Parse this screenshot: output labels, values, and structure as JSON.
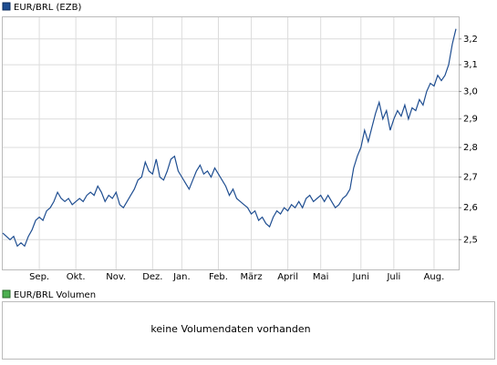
{
  "chart_data": {
    "type": "line",
    "log_scale": true,
    "grid": true,
    "series": [
      {
        "name": "EUR/BRL (EZB)",
        "color": "#1f4e91",
        "values": [
          2.52,
          2.51,
          2.5,
          2.51,
          2.48,
          2.49,
          2.48,
          2.51,
          2.53,
          2.56,
          2.57,
          2.56,
          2.59,
          2.6,
          2.62,
          2.65,
          2.63,
          2.62,
          2.63,
          2.61,
          2.62,
          2.63,
          2.62,
          2.64,
          2.65,
          2.64,
          2.67,
          2.65,
          2.62,
          2.64,
          2.63,
          2.65,
          2.61,
          2.6,
          2.62,
          2.64,
          2.66,
          2.69,
          2.7,
          2.75,
          2.72,
          2.71,
          2.76,
          2.7,
          2.69,
          2.72,
          2.76,
          2.77,
          2.72,
          2.7,
          2.68,
          2.66,
          2.69,
          2.72,
          2.74,
          2.71,
          2.72,
          2.7,
          2.73,
          2.71,
          2.69,
          2.67,
          2.64,
          2.66,
          2.63,
          2.62,
          2.61,
          2.6,
          2.58,
          2.59,
          2.56,
          2.57,
          2.55,
          2.54,
          2.57,
          2.59,
          2.58,
          2.6,
          2.59,
          2.61,
          2.6,
          2.62,
          2.6,
          2.63,
          2.64,
          2.62,
          2.63,
          2.64,
          2.62,
          2.64,
          2.62,
          2.6,
          2.61,
          2.63,
          2.64,
          2.66,
          2.73,
          2.77,
          2.8,
          2.86,
          2.82,
          2.87,
          2.92,
          2.96,
          2.9,
          2.93,
          2.86,
          2.9,
          2.93,
          2.91,
          2.95,
          2.9,
          2.94,
          2.93,
          2.97,
          2.95,
          3.0,
          3.03,
          3.02,
          3.06,
          3.04,
          3.06,
          3.1,
          3.18,
          3.24
        ]
      }
    ],
    "categories": [
      null,
      null,
      null,
      null,
      null,
      null,
      null,
      null,
      null,
      null,
      "Sep.",
      null,
      null,
      null,
      null,
      null,
      null,
      null,
      null,
      null,
      "Okt.",
      null,
      null,
      null,
      null,
      null,
      null,
      null,
      null,
      null,
      null,
      "Nov.",
      null,
      null,
      null,
      null,
      null,
      null,
      null,
      null,
      null,
      "Dez.",
      null,
      null,
      null,
      null,
      null,
      null,
      null,
      "Jan.",
      null,
      null,
      null,
      null,
      null,
      null,
      null,
      null,
      null,
      "Feb.",
      null,
      null,
      null,
      null,
      null,
      null,
      null,
      null,
      "März",
      null,
      null,
      null,
      null,
      null,
      null,
      null,
      null,
      null,
      "April",
      null,
      null,
      null,
      null,
      null,
      null,
      null,
      null,
      "Mai",
      null,
      null,
      null,
      null,
      null,
      null,
      null,
      null,
      null,
      null,
      "Juni",
      null,
      null,
      null,
      null,
      null,
      null,
      null,
      null,
      "Juli",
      null,
      null,
      null,
      null,
      null,
      null,
      null,
      null,
      null,
      null,
      "Aug.",
      null,
      null,
      null,
      null,
      null,
      null
    ],
    "ylim": [
      2.41,
      3.29
    ],
    "yticks": [
      {
        "value": 2.5,
        "label": "2,5"
      },
      {
        "value": 2.6,
        "label": "2,6"
      },
      {
        "value": 2.7,
        "label": "2,7"
      },
      {
        "value": 2.8,
        "label": "2,8"
      },
      {
        "value": 2.9,
        "label": "2,9"
      },
      {
        "value": 3.0,
        "label": "3,0"
      },
      {
        "value": 3.1,
        "label": "3,1"
      },
      {
        "value": 3.2,
        "label": "3,2"
      }
    ]
  },
  "volume_panel": {
    "legend": "EUR/BRL Volumen",
    "message": "keine Volumendaten vorhanden"
  }
}
